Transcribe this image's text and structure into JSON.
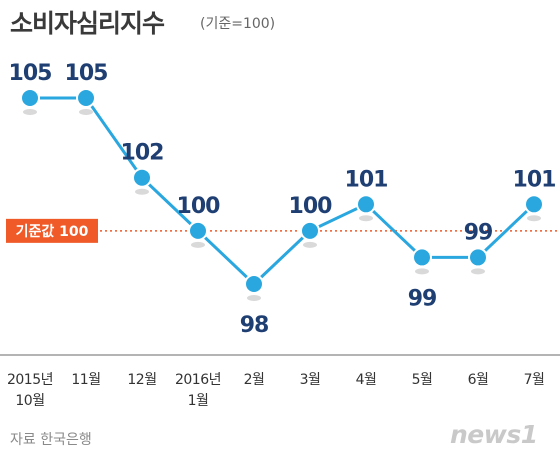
{
  "header": {
    "title": "소비자심리지수",
    "subtitle": "(기준=100)"
  },
  "footer": {
    "source": "자료  한국은행",
    "logo_text": "news1"
  },
  "chart_data": {
    "type": "line",
    "title": "소비자심리지수",
    "subtitle": "(기준=100)",
    "categories": [
      [
        "2015년",
        "10월"
      ],
      [
        "11월"
      ],
      [
        "12월"
      ],
      [
        "2016년",
        "1월"
      ],
      [
        "2월"
      ],
      [
        "3월"
      ],
      [
        "4월"
      ],
      [
        "5월"
      ],
      [
        "6월"
      ],
      [
        "7월"
      ]
    ],
    "series": [
      {
        "values": [
          105,
          105,
          102,
          100,
          98,
          100,
          101,
          99,
          99,
          101
        ]
      }
    ],
    "data_labels": [
      "105",
      "105",
      "102",
      "100",
      "98",
      "100",
      "101",
      "99",
      "99",
      "101"
    ],
    "reference_line": {
      "value": 100,
      "label": "기준값 100",
      "color": "#f05a28"
    },
    "ylim": [
      97,
      106
    ],
    "grid": false,
    "colors": {
      "line": "#2aa7df",
      "label": "#1f3f73",
      "axis": "#888888"
    }
  }
}
